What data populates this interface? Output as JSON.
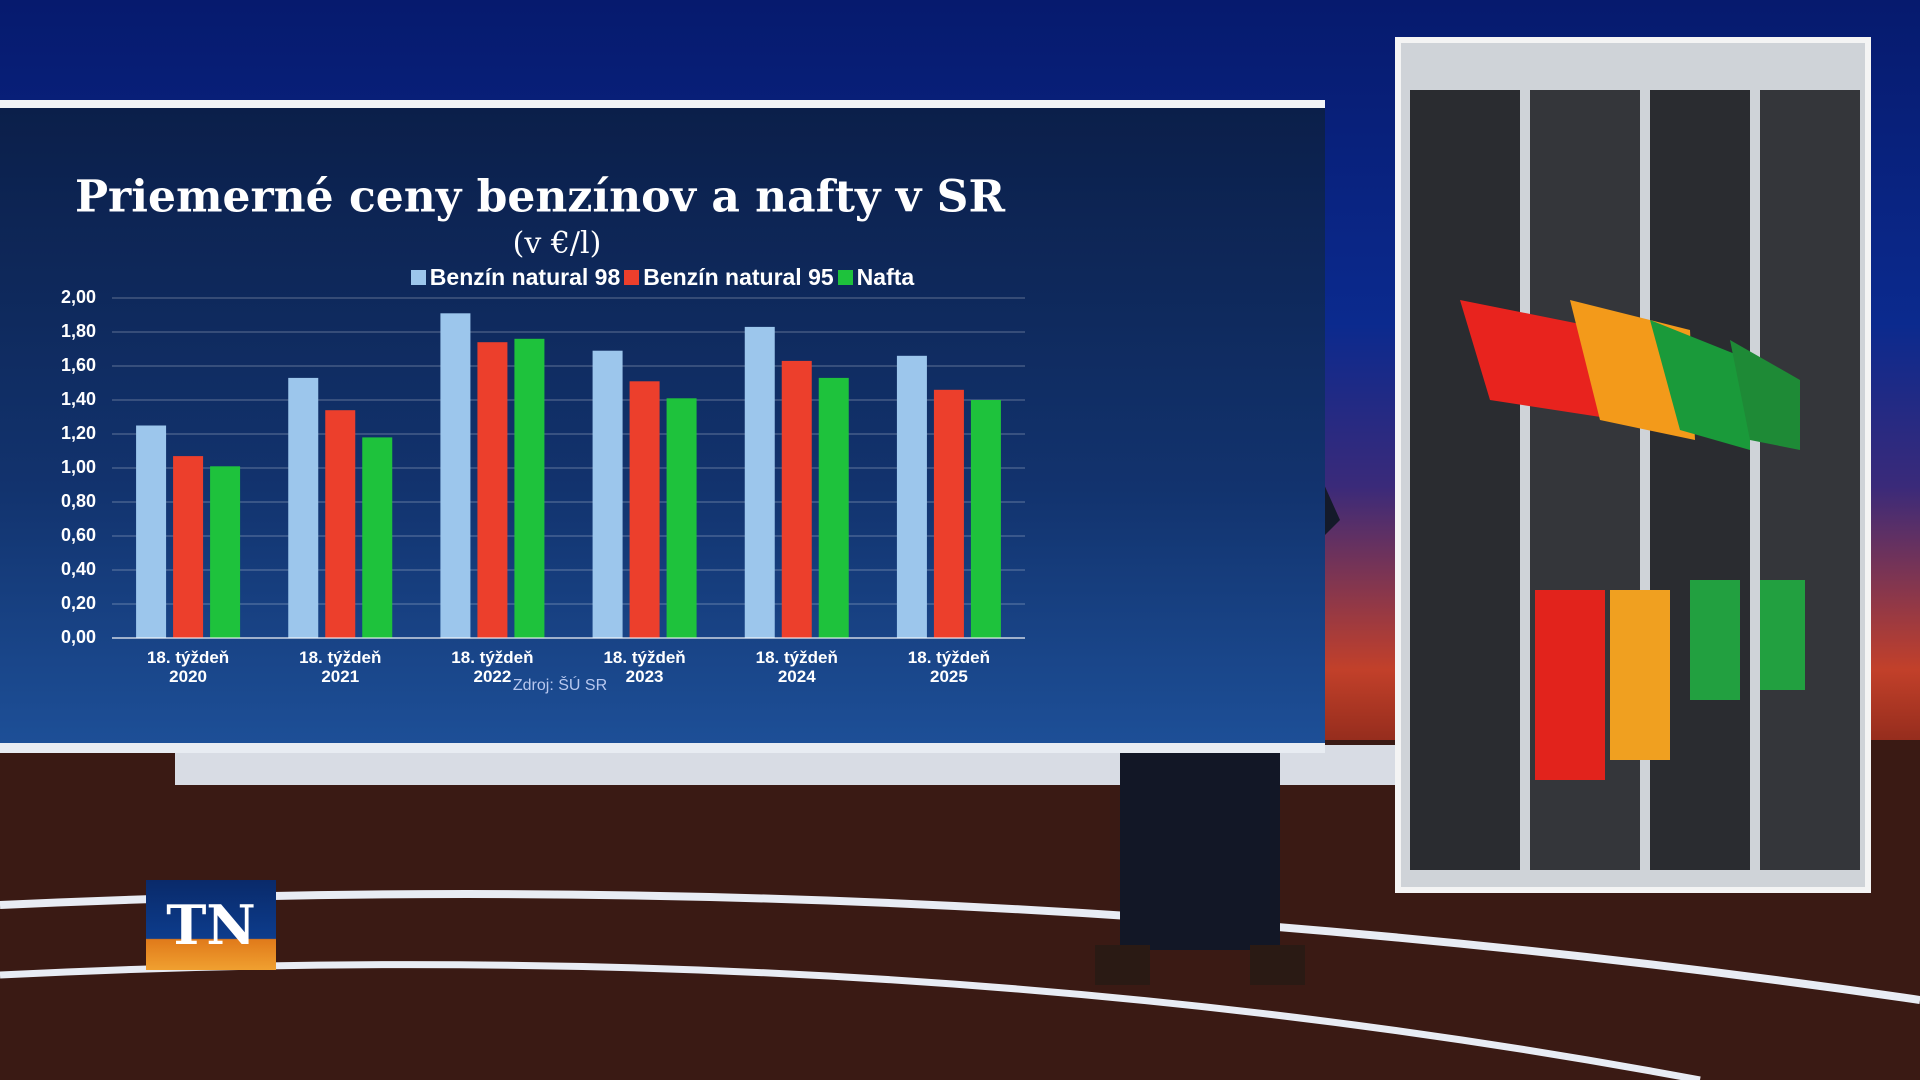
{
  "chart_data": {
    "type": "bar",
    "title": "Priemerné ceny benzínov a nafty v SR",
    "subtitle": "(v €/l)",
    "source": "Zdroj: ŠÚ SR",
    "logo": "TN",
    "categories": [
      "18. týždeň 2020",
      "18. týždeň 2021",
      "18. týždeň 2022",
      "18. týždeň 2023",
      "18. týždeň 2024",
      "18. týždeň 2025"
    ],
    "series": [
      {
        "name": "Benzín natural 98",
        "color": "#9cc6ec",
        "values": [
          1.25,
          1.53,
          1.91,
          1.69,
          1.83,
          1.66
        ]
      },
      {
        "name": "Benzín natural 95",
        "color": "#ec3f2c",
        "values": [
          1.07,
          1.34,
          1.74,
          1.51,
          1.63,
          1.46
        ]
      },
      {
        "name": "Nafta",
        "color": "#1ec23c",
        "values": [
          1.01,
          1.18,
          1.76,
          1.41,
          1.53,
          1.4
        ]
      }
    ],
    "ylim": [
      0,
      2
    ],
    "yticks": [
      {
        "value": 0,
        "label": "0,00"
      },
      {
        "value": 0.2,
        "label": "0,20"
      },
      {
        "value": 0.4,
        "label": "0,40"
      },
      {
        "value": 0.6,
        "label": "0,60"
      },
      {
        "value": 0.8,
        "label": "0,80"
      },
      {
        "value": 1,
        "label": "1,00"
      },
      {
        "value": 1.2,
        "label": "1,20"
      },
      {
        "value": 1.4,
        "label": "1,40"
      },
      {
        "value": 1.6,
        "label": "1,60"
      },
      {
        "value": 1.8,
        "label": "1,80"
      },
      {
        "value": 2,
        "label": "2,00"
      }
    ],
    "grid": true
  }
}
